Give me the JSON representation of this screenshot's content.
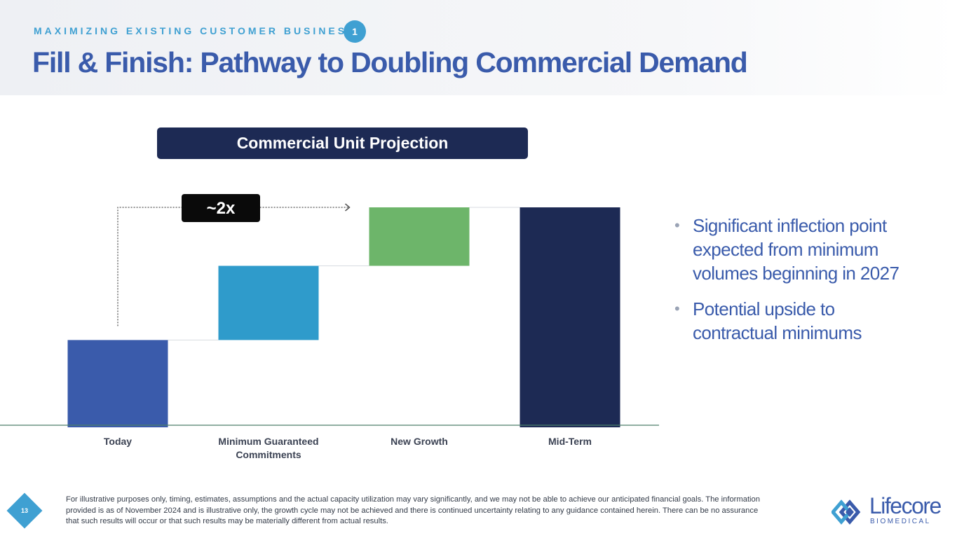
{
  "header": {
    "eyebrow": "MAXIMIZING EXISTING CUSTOMER BUSINESS",
    "eyebrow_badge": "1",
    "title": "Fill & Finish: Pathway to Doubling Commercial Demand"
  },
  "chart_data": {
    "type": "bar",
    "subtype": "waterfall",
    "title": "Commercial Unit Projection",
    "categories": [
      "Today",
      "Minimum Guaranteed Commitments",
      "New Growth",
      "Mid-Term"
    ],
    "category_lines": [
      [
        "Today"
      ],
      [
        "Minimum Guaranteed",
        "Commitments"
      ],
      [
        "New Growth"
      ],
      [
        "Mid-Term"
      ]
    ],
    "values": [
      1.0,
      0.85,
      0.67,
      2.52
    ],
    "bases": [
      0,
      1.0,
      1.85,
      0
    ],
    "ylim": [
      0,
      2.52
    ],
    "colors": [
      "#3a5bab",
      "#2f9bcb",
      "#6db56a",
      "#1d2a54"
    ],
    "annotation": "~2x",
    "xlabel": "",
    "ylabel": ""
  },
  "bullets": [
    "Significant inflection point expected from minimum volumes beginning in 2027",
    "Potential upside to contractual minimums"
  ],
  "footer": {
    "page_number": "13",
    "disclaimer": "For illustrative purposes only, timing, estimates, assumptions and the actual capacity utilization may vary significantly, and we may not be able to achieve our anticipated financial goals. The information provided is as of November 2024 and is illustrative only, the growth cycle may not be achieved and there is continued uncertainty relating to any guidance contained herein. There can be no assurance that such results will occur or that such results may be materially different from actual results."
  },
  "logo": {
    "name": "Lifecore",
    "sub": "BIOMEDICAL"
  },
  "colors": {
    "brand_blue": "#3a5bab",
    "accent_cyan": "#3fa0d2",
    "navy": "#1d2a54"
  }
}
